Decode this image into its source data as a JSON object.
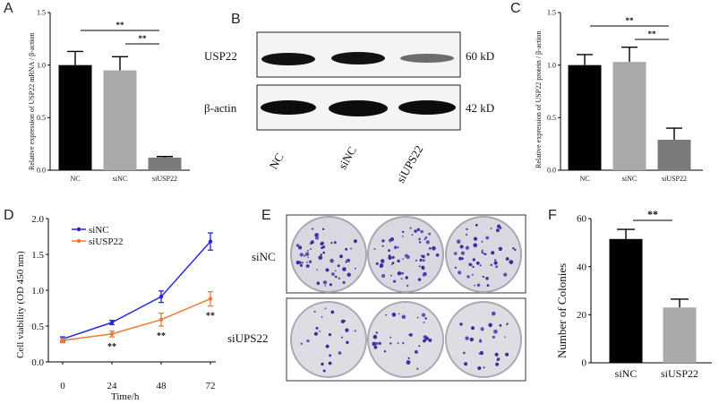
{
  "panels": {
    "A": "A",
    "B": "B",
    "C": "C",
    "D": "D",
    "E": "E",
    "F": "F"
  },
  "blot": {
    "rows": [
      {
        "label": "USP22",
        "size": "60 kD"
      },
      {
        "label": "β-actin",
        "size": "42 kD"
      }
    ],
    "lanes": [
      "NC",
      "siNC",
      "siUPS22"
    ],
    "band_intensity": {
      "USP22": [
        1.0,
        1.0,
        0.6
      ],
      "β-actin": [
        1.0,
        1.0,
        1.0
      ]
    }
  },
  "colony_rows": [
    "siNC",
    "siUPS22"
  ],
  "colors": {
    "black": "#000000",
    "grey": "#a9a9ab",
    "darkgrey": "#7b7b7b",
    "blue": "#2727d8",
    "orange": "#f07b2e"
  },
  "chart_data": [
    {
      "type": "bar",
      "id": "A",
      "categories": [
        "NC",
        "siNC",
        "siUSP22"
      ],
      "values": [
        1.0,
        0.95,
        0.12
      ],
      "errors": [
        0.13,
        0.13,
        0.01
      ],
      "ylabel": "Relative expression of USP22 mRNA / β-action",
      "ylim": [
        0,
        1.5
      ],
      "yticks": [
        "0.0",
        "0.5",
        "1.0",
        "1.5"
      ],
      "significance": [
        {
          "pair": [
            "NC",
            "siUSP22"
          ],
          "label": "**"
        },
        {
          "pair": [
            "siNC",
            "siUSP22"
          ],
          "label": "**"
        }
      ]
    },
    {
      "type": "bar",
      "id": "C",
      "categories": [
        "NC",
        "siNC",
        "siUSP22"
      ],
      "values": [
        1.0,
        1.03,
        0.29
      ],
      "errors": [
        0.1,
        0.14,
        0.11
      ],
      "ylabel": "Relative expression of USP22 protein / β-action",
      "ylim": [
        0,
        1.5
      ],
      "yticks": [
        "0.0",
        "0.5",
        "1.0",
        "1.5"
      ],
      "significance": [
        {
          "pair": [
            "NC",
            "siUSP22"
          ],
          "label": "**"
        },
        {
          "pair": [
            "siNC",
            "siUSP22"
          ],
          "label": "**"
        }
      ]
    },
    {
      "type": "line",
      "id": "D",
      "x": [
        0,
        24,
        48,
        72
      ],
      "xticks": [
        "0",
        "24",
        "48",
        "72"
      ],
      "series": [
        {
          "name": "siNC",
          "values": [
            0.32,
            0.55,
            0.91,
            1.68
          ],
          "errors": [
            0.03,
            0.03,
            0.08,
            0.12
          ]
        },
        {
          "name": "siUSP22",
          "values": [
            0.3,
            0.39,
            0.59,
            0.88
          ],
          "errors": [
            0.03,
            0.04,
            0.09,
            0.1
          ]
        }
      ],
      "xlabel": "Time/h",
      "ylabel": "Cell viability (OD 450 nm)",
      "ylim": [
        0,
        2.0
      ],
      "yticks": [
        "0.0",
        "0.5",
        "1.0",
        "1.5",
        "2.0"
      ],
      "annotations": [
        {
          "x": 24,
          "label": "**"
        },
        {
          "x": 48,
          "label": "**"
        },
        {
          "x": 72,
          "label": "**"
        }
      ],
      "legend": "top-left"
    },
    {
      "type": "bar",
      "id": "F",
      "categories": [
        "siNC",
        "siUSP22"
      ],
      "values": [
        51.5,
        23.0
      ],
      "errors": [
        4.0,
        3.5
      ],
      "ylabel": "Number of Colonies",
      "ylim": [
        0,
        60
      ],
      "yticks": [
        "0",
        "20",
        "40",
        "60"
      ],
      "significance": [
        {
          "pair": [
            "siNC",
            "siUSP22"
          ],
          "label": "**"
        }
      ]
    }
  ]
}
